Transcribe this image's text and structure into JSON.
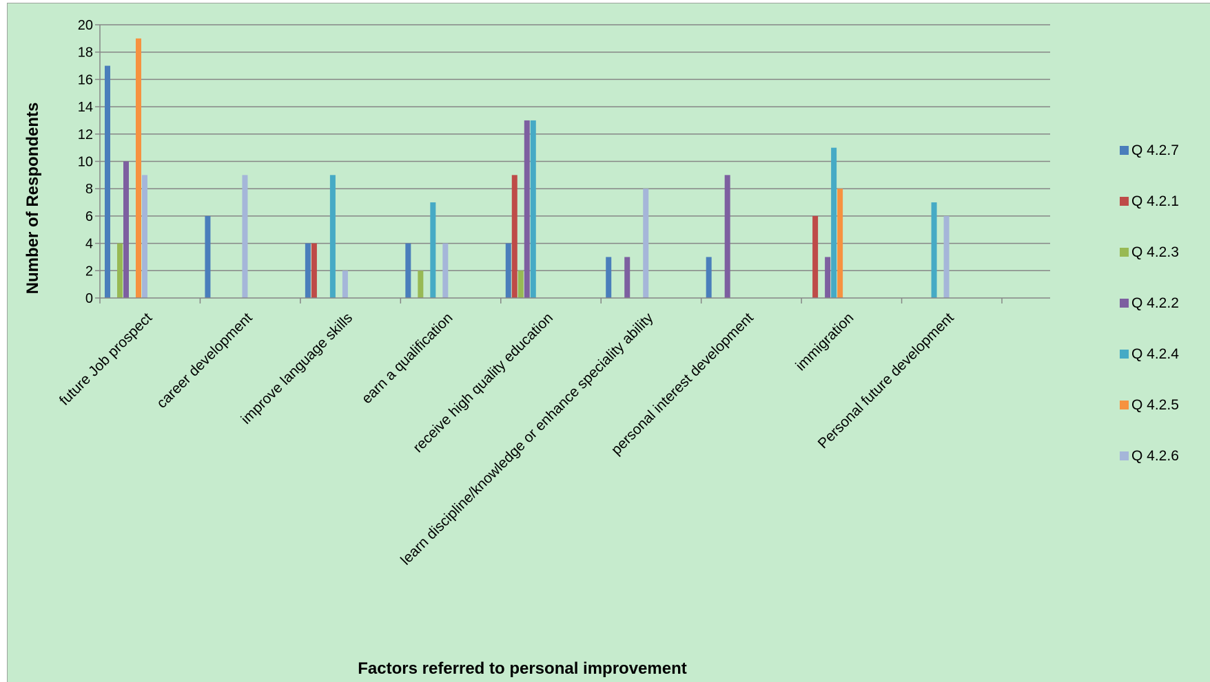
{
  "chart_data": {
    "type": "bar",
    "title": "",
    "xlabel": "Factors referred to personal improvement",
    "ylabel": "Number of Respondents",
    "ylim": [
      0,
      20
    ],
    "yticks": [
      0,
      2,
      4,
      6,
      8,
      10,
      12,
      14,
      16,
      18,
      20
    ],
    "grid": true,
    "legend_position": "right",
    "categories": [
      "future Job prospect",
      "career development",
      "improve language skills",
      "earn a qualification",
      "receive high quality education",
      "learn discipline/knowledge or enhance speciality ability",
      "personal interest development",
      "immigration",
      "Personal future development"
    ],
    "series": [
      {
        "name": "Q 4.2.7",
        "color": "#4a7ebb",
        "values": [
          17,
          6,
          4,
          4,
          4,
          3,
          3,
          0,
          0
        ]
      },
      {
        "name": "Q 4.2.1",
        "color": "#be4b48",
        "values": [
          0,
          0,
          4,
          0,
          9,
          0,
          0,
          6,
          0
        ]
      },
      {
        "name": "Q 4.2.3",
        "color": "#98b954",
        "values": [
          4,
          0,
          0,
          2,
          2,
          0,
          0,
          0,
          0
        ]
      },
      {
        "name": "Q 4.2.2",
        "color": "#7d5fa0",
        "values": [
          10,
          0,
          0,
          0,
          13,
          3,
          9,
          3,
          0
        ]
      },
      {
        "name": "Q 4.2.4",
        "color": "#46aac5",
        "values": [
          0,
          0,
          9,
          7,
          13,
          0,
          0,
          11,
          7
        ]
      },
      {
        "name": "Q 4.2.5",
        "color": "#f69240",
        "values": [
          19,
          0,
          0,
          0,
          0,
          0,
          0,
          8,
          0
        ]
      },
      {
        "name": "Q 4.2.6",
        "color": "#a5b6d9",
        "values": [
          9,
          9,
          2,
          4,
          0,
          8,
          0,
          0,
          6
        ]
      }
    ]
  }
}
